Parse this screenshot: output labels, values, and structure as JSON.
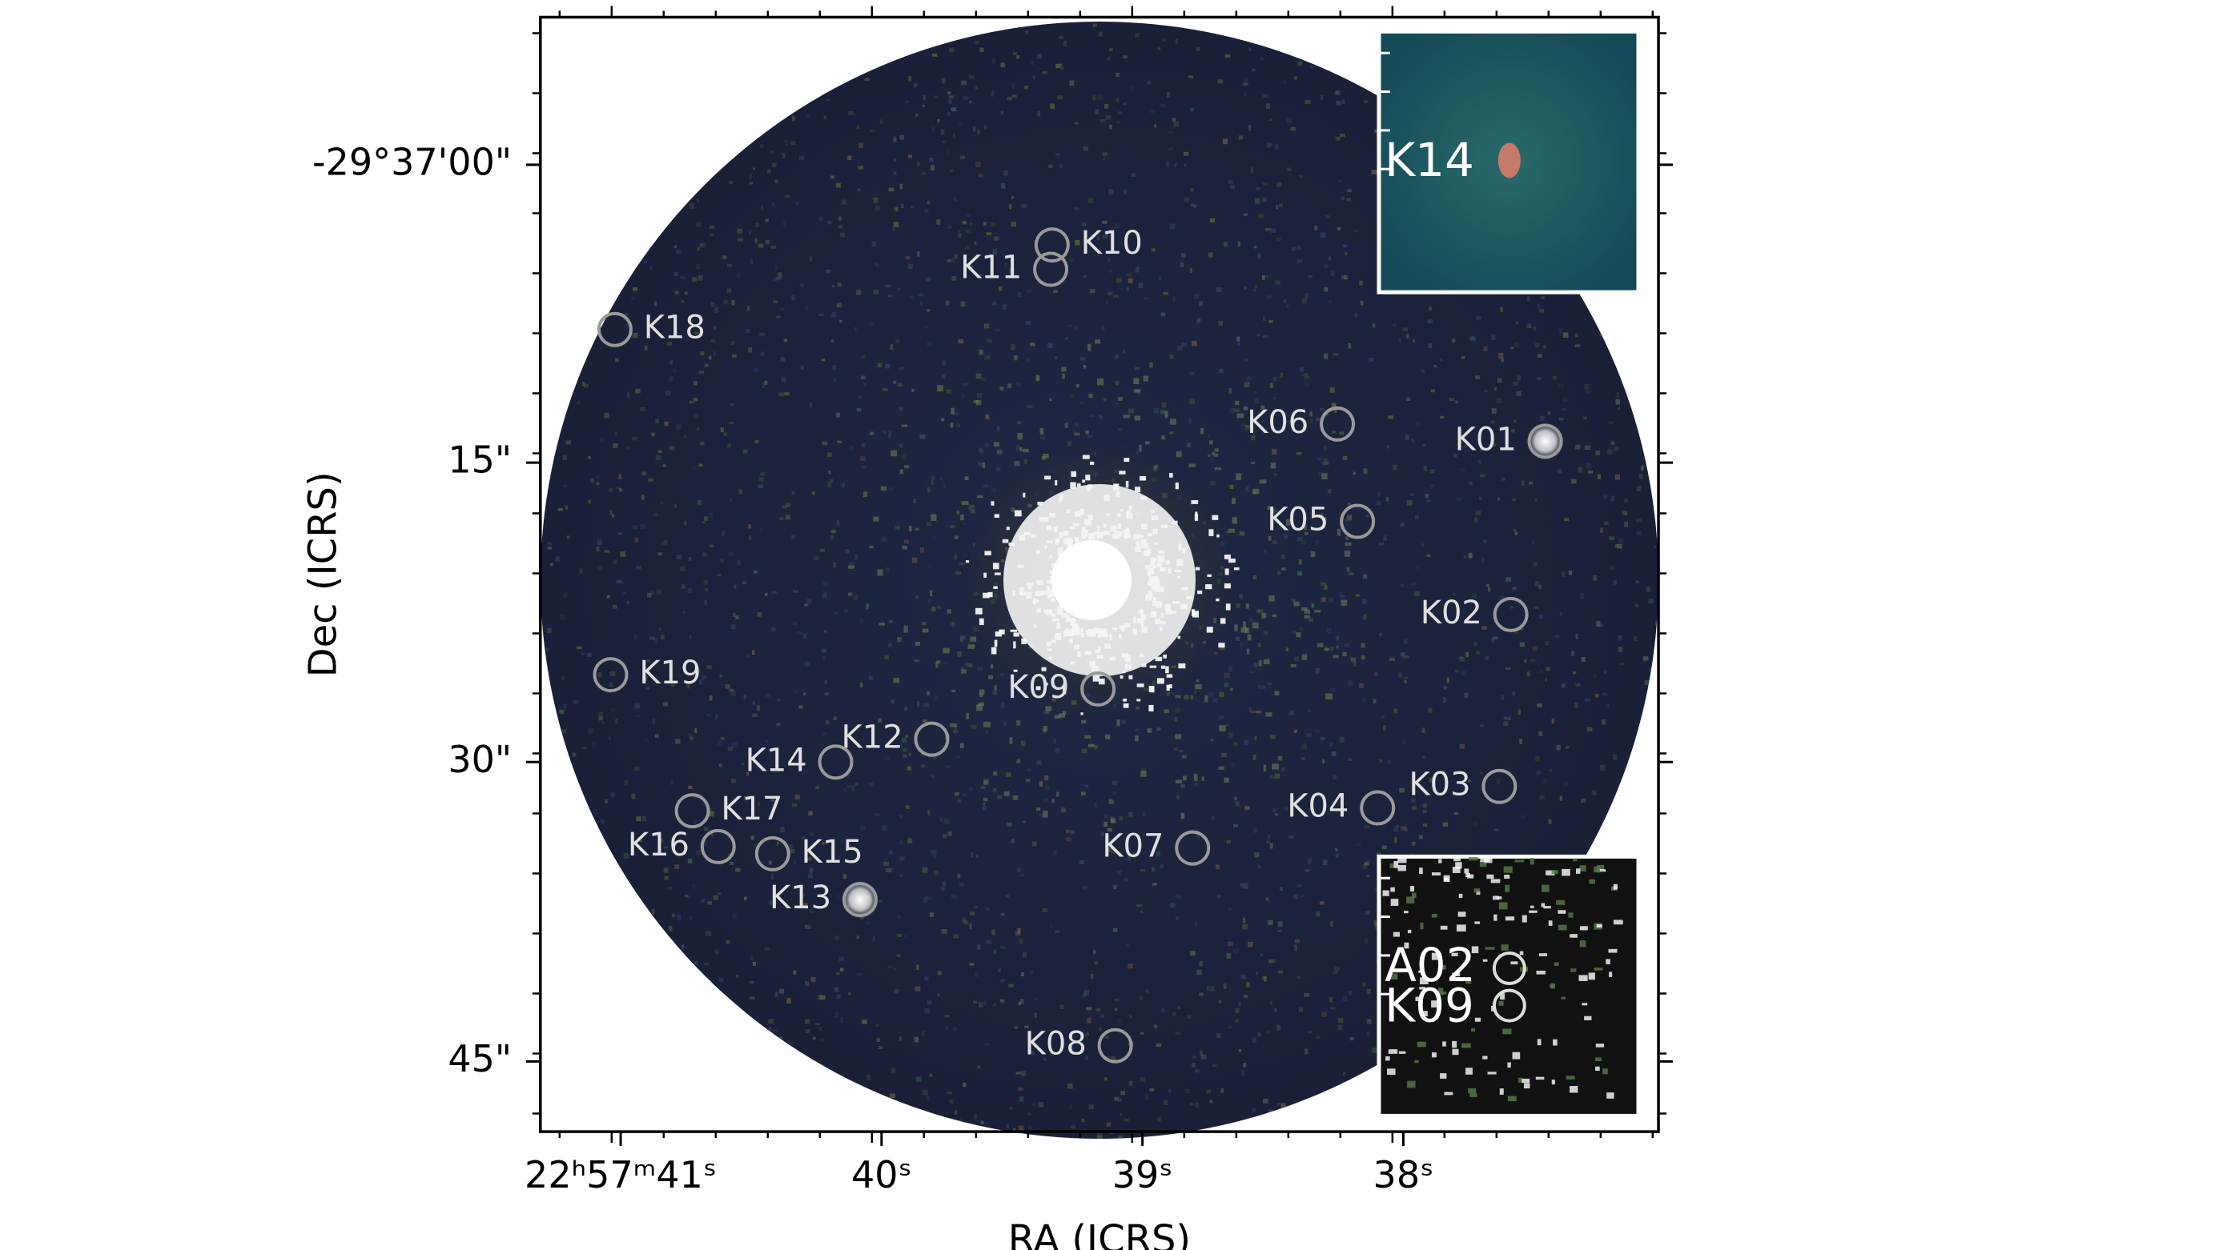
{
  "axes": {
    "x_label": "RA (ICRS)",
    "y_label": "Dec (ICRS)",
    "x_ticks": [
      "22ʰ57ᵐ41ˢ",
      "40ˢ",
      "39ˢ",
      "38ˢ"
    ],
    "y_ticks": [
      "-29°37'00\"",
      "15\"",
      "30\"",
      "45\""
    ]
  },
  "sources": [
    {
      "label": "K10"
    },
    {
      "label": "K11"
    },
    {
      "label": "K18"
    },
    {
      "label": "K06"
    },
    {
      "label": "K01"
    },
    {
      "label": "K05"
    },
    {
      "label": "K02"
    },
    {
      "label": "K19"
    },
    {
      "label": "K09"
    },
    {
      "label": "K12"
    },
    {
      "label": "K14"
    },
    {
      "label": "K03"
    },
    {
      "label": "K04"
    },
    {
      "label": "K17"
    },
    {
      "label": "K16"
    },
    {
      "label": "K15"
    },
    {
      "label": "K07"
    },
    {
      "label": "K13"
    },
    {
      "label": "K08"
    }
  ],
  "insets": [
    {
      "labels": [
        "K14"
      ]
    },
    {
      "labels": [
        "A02",
        "K09"
      ]
    }
  ]
}
